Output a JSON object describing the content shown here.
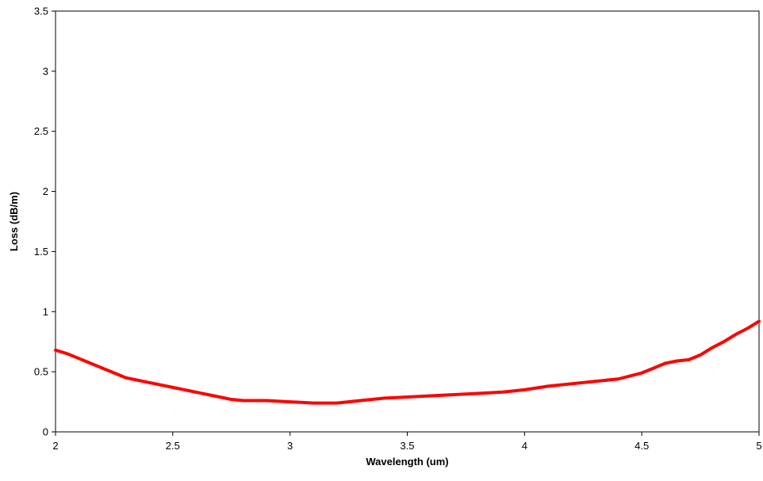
{
  "chart_data": {
    "type": "line",
    "title": "",
    "xlabel": "Wavelength (um)",
    "ylabel": "Loss (dB/m)",
    "xlim": [
      2,
      5
    ],
    "ylim": [
      0,
      3.5
    ],
    "xticks": [
      "2",
      "2.5",
      "3",
      "3.5",
      "4",
      "4.5",
      "5"
    ],
    "yticks": [
      "0",
      "0.5",
      "1",
      "1.5",
      "2",
      "2.5",
      "3",
      "3.5"
    ],
    "grid": false,
    "legend": "none",
    "series": [
      {
        "color": "#ff0000",
        "x": [
          2.0,
          2.05,
          2.1,
          2.15,
          2.2,
          2.25,
          2.3,
          2.4,
          2.5,
          2.6,
          2.7,
          2.75,
          2.8,
          2.9,
          3.0,
          3.1,
          3.2,
          3.3,
          3.4,
          3.5,
          3.6,
          3.7,
          3.8,
          3.9,
          4.0,
          4.1,
          4.2,
          4.3,
          4.4,
          4.5,
          4.55,
          4.6,
          4.65,
          4.7,
          4.75,
          4.8,
          4.85,
          4.9,
          4.95,
          5.0
        ],
        "y": [
          0.68,
          0.65,
          0.61,
          0.57,
          0.53,
          0.49,
          0.45,
          0.41,
          0.37,
          0.33,
          0.29,
          0.27,
          0.26,
          0.26,
          0.25,
          0.24,
          0.24,
          0.26,
          0.28,
          0.29,
          0.3,
          0.31,
          0.32,
          0.33,
          0.35,
          0.38,
          0.4,
          0.42,
          0.44,
          0.49,
          0.53,
          0.57,
          0.59,
          0.6,
          0.64,
          0.7,
          0.75,
          0.81,
          0.86,
          0.92
        ]
      }
    ]
  }
}
